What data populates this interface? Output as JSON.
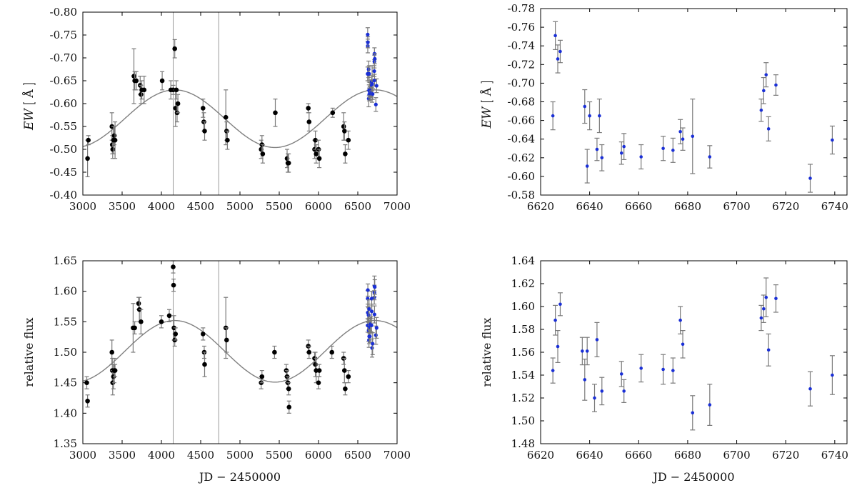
{
  "chart_data": [
    {
      "id": "ew-full",
      "type": "scatter",
      "xlabel": "",
      "ylabel": {
        "main": "EW",
        "unit": "Å"
      },
      "xlim": [
        3000,
        7000
      ],
      "ylim": [
        -0.4,
        -0.8
      ],
      "y_inverted": true,
      "xticks": [
        "3000",
        "3500",
        "4000",
        "4500",
        "5000",
        "5500",
        "6000",
        "6500",
        "7000"
      ],
      "yticks": [
        "-0.80",
        "-0.75",
        "-0.70",
        "-0.65",
        "-0.60",
        "-0.55",
        "-0.50",
        "-0.45",
        "-0.40"
      ],
      "vlines": [
        4150,
        4730
      ],
      "fit": {
        "kind": "sinusoid",
        "offset": -0.567,
        "amplitude": 0.063,
        "period": 2550,
        "peak_x": 4170
      },
      "series": [
        {
          "color": "#000000",
          "points": [
            {
              "x": 3060,
              "y": -0.48,
              "e": 0.04
            },
            {
              "x": 3070,
              "y": -0.52,
              "e": 0.01
            },
            {
              "x": 3370,
              "y": -0.55,
              "e": 0.03
            },
            {
              "x": 3375,
              "y": -0.51,
              "e": 0.02
            },
            {
              "x": 3380,
              "y": -0.5,
              "e": 0.02
            },
            {
              "x": 3390,
              "y": -0.52,
              "e": 0.03
            },
            {
              "x": 3400,
              "y": -0.53,
              "e": 0.02
            },
            {
              "x": 3410,
              "y": -0.52,
              "e": 0.04
            },
            {
              "x": 3650,
              "y": -0.66,
              "e": 0.06
            },
            {
              "x": 3660,
              "y": -0.65,
              "e": 0.02
            },
            {
              "x": 3680,
              "y": -0.65,
              "e": 0.02
            },
            {
              "x": 3730,
              "y": -0.64,
              "e": 0.02
            },
            {
              "x": 3740,
              "y": -0.62,
              "e": 0.02
            },
            {
              "x": 3750,
              "y": -0.63,
              "e": 0.02
            },
            {
              "x": 3780,
              "y": -0.63,
              "e": 0.03
            },
            {
              "x": 4010,
              "y": -0.65,
              "e": 0.02
            },
            {
              "x": 4120,
              "y": -0.63,
              "e": 0.02
            },
            {
              "x": 4150,
              "y": -0.63,
              "e": 0.01
            },
            {
              "x": 4170,
              "y": -0.72,
              "e": 0.02
            },
            {
              "x": 4180,
              "y": -0.59,
              "e": 0.04
            },
            {
              "x": 4190,
              "y": -0.63,
              "e": 0.02
            },
            {
              "x": 4200,
              "y": -0.58,
              "e": 0.02
            },
            {
              "x": 4210,
              "y": -0.6,
              "e": 0.02
            },
            {
              "x": 4530,
              "y": -0.59,
              "e": 0.02
            },
            {
              "x": 4540,
              "y": -0.56,
              "e": 0.02
            },
            {
              "x": 4550,
              "y": -0.54,
              "e": 0.02
            },
            {
              "x": 4820,
              "y": -0.57,
              "e": 0.06
            },
            {
              "x": 4830,
              "y": -0.54,
              "e": 0.02
            },
            {
              "x": 4840,
              "y": -0.52,
              "e": 0.02
            },
            {
              "x": 5270,
              "y": -0.5,
              "e": 0.02
            },
            {
              "x": 5280,
              "y": -0.51,
              "e": 0.02
            },
            {
              "x": 5290,
              "y": -0.49,
              "e": 0.02
            },
            {
              "x": 5450,
              "y": -0.58,
              "e": 0.03
            },
            {
              "x": 5600,
              "y": -0.48,
              "e": 0.02
            },
            {
              "x": 5610,
              "y": -0.47,
              "e": 0.02
            },
            {
              "x": 5620,
              "y": -0.47,
              "e": 0.02
            },
            {
              "x": 5870,
              "y": -0.59,
              "e": 0.01
            },
            {
              "x": 5880,
              "y": -0.56,
              "e": 0.02
            },
            {
              "x": 5950,
              "y": -0.5,
              "e": 0.02
            },
            {
              "x": 5960,
              "y": -0.52,
              "e": 0.02
            },
            {
              "x": 5970,
              "y": -0.49,
              "e": 0.02
            },
            {
              "x": 6000,
              "y": -0.5,
              "e": 0.02
            },
            {
              "x": 6010,
              "y": -0.48,
              "e": 0.02
            },
            {
              "x": 6180,
              "y": -0.58,
              "e": 0.01
            },
            {
              "x": 6320,
              "y": -0.55,
              "e": 0.03
            },
            {
              "x": 6330,
              "y": -0.54,
              "e": 0.02
            },
            {
              "x": 6340,
              "y": -0.49,
              "e": 0.02
            },
            {
              "x": 6380,
              "y": -0.52,
              "e": 0.02
            }
          ]
        },
        {
          "color": "#1a2fd6",
          "points": [
            {
              "x": 6625,
              "y": -0.665,
              "e": 0.015
            },
            {
              "x": 6626,
              "y": -0.751,
              "e": 0.015
            },
            {
              "x": 6627,
              "y": -0.726,
              "e": 0.015
            },
            {
              "x": 6628,
              "y": -0.734,
              "e": 0.012
            },
            {
              "x": 6638,
              "y": -0.675,
              "e": 0.018
            },
            {
              "x": 6639,
              "y": -0.611,
              "e": 0.018
            },
            {
              "x": 6640,
              "y": -0.665,
              "e": 0.015
            },
            {
              "x": 6643,
              "y": -0.629,
              "e": 0.012
            },
            {
              "x": 6644,
              "y": -0.665,
              "e": 0.018
            },
            {
              "x": 6645,
              "y": -0.62,
              "e": 0.014
            },
            {
              "x": 6653,
              "y": -0.625,
              "e": 0.012
            },
            {
              "x": 6654,
              "y": -0.632,
              "e": 0.014
            },
            {
              "x": 6661,
              "y": -0.621,
              "e": 0.013
            },
            {
              "x": 6670,
              "y": -0.63,
              "e": 0.013
            },
            {
              "x": 6674,
              "y": -0.628,
              "e": 0.013
            },
            {
              "x": 6677,
              "y": -0.648,
              "e": 0.013
            },
            {
              "x": 6678,
              "y": -0.64,
              "e": 0.012
            },
            {
              "x": 6682,
              "y": -0.643,
              "e": 0.04
            },
            {
              "x": 6689,
              "y": -0.621,
              "e": 0.012
            },
            {
              "x": 6710,
              "y": -0.671,
              "e": 0.012
            },
            {
              "x": 6711,
              "y": -0.692,
              "e": 0.014
            },
            {
              "x": 6712,
              "y": -0.709,
              "e": 0.013
            },
            {
              "x": 6713,
              "y": -0.651,
              "e": 0.013
            },
            {
              "x": 6716,
              "y": -0.698,
              "e": 0.011
            },
            {
              "x": 6730,
              "y": -0.598,
              "e": 0.015
            },
            {
              "x": 6739,
              "y": -0.639,
              "e": 0.015
            }
          ]
        }
      ]
    },
    {
      "id": "ew-zoom",
      "type": "scatter",
      "xlabel": "",
      "ylabel": {
        "main": "EW",
        "unit": "Å"
      },
      "xlim": [
        6620,
        6745
      ],
      "ylim": [
        -0.58,
        -0.78
      ],
      "y_inverted": true,
      "xticks": [
        "6620",
        "6640",
        "6660",
        "6680",
        "6700",
        "6720",
        "6740"
      ],
      "xtick_values": [
        6620,
        6640,
        6660,
        6680,
        6700,
        6720,
        6740
      ],
      "yticks": [
        "-0.78",
        "-0.76",
        "-0.74",
        "-0.72",
        "-0.70",
        "-0.68",
        "-0.66",
        "-0.64",
        "-0.62",
        "-0.60",
        "-0.58"
      ],
      "series_ref": "ew-full.1"
    },
    {
      "id": "flux-full",
      "type": "scatter",
      "xlabel": "JD − 2450000",
      "ylabel": {
        "main": "relative flux",
        "unit": ""
      },
      "xlim": [
        3000,
        7000
      ],
      "ylim": [
        1.35,
        1.65
      ],
      "y_inverted": false,
      "xticks": [
        "3000",
        "3500",
        "4000",
        "4500",
        "5000",
        "5500",
        "6000",
        "6500",
        "7000"
      ],
      "yticks": [
        "1.65",
        "1.60",
        "1.55",
        "1.50",
        "1.45",
        "1.40",
        "1.35"
      ],
      "vlines": [
        4150,
        4730
      ],
      "fit": {
        "kind": "sinusoid",
        "offset": 1.5015,
        "amplitude": 0.0505,
        "period": 2550,
        "peak_x": 4170
      },
      "series": [
        {
          "color": "#000000",
          "points": [
            {
              "x": 3050,
              "y": 1.45,
              "e": 0.01
            },
            {
              "x": 3060,
              "y": 1.42,
              "e": 0.01
            },
            {
              "x": 3370,
              "y": 1.5,
              "e": 0.02
            },
            {
              "x": 3375,
              "y": 1.47,
              "e": 0.02
            },
            {
              "x": 3380,
              "y": 1.45,
              "e": 0.02
            },
            {
              "x": 3390,
              "y": 1.46,
              "e": 0.02
            },
            {
              "x": 3400,
              "y": 1.47,
              "e": 0.02
            },
            {
              "x": 3410,
              "y": 1.47,
              "e": 0.01
            },
            {
              "x": 3640,
              "y": 1.54,
              "e": 0.04
            },
            {
              "x": 3660,
              "y": 1.54,
              "e": 0.01
            },
            {
              "x": 3710,
              "y": 1.58,
              "e": 0.01
            },
            {
              "x": 3720,
              "y": 1.57,
              "e": 0.02
            },
            {
              "x": 3740,
              "y": 1.55,
              "e": 0.02
            },
            {
              "x": 4000,
              "y": 1.55,
              "e": 0.01
            },
            {
              "x": 4100,
              "y": 1.56,
              "e": 0.01
            },
            {
              "x": 4150,
              "y": 1.64,
              "e": 0.01
            },
            {
              "x": 4155,
              "y": 1.61,
              "e": 0.01
            },
            {
              "x": 4160,
              "y": 1.54,
              "e": 0.02
            },
            {
              "x": 4170,
              "y": 1.52,
              "e": 0.01
            },
            {
              "x": 4180,
              "y": 1.53,
              "e": 0.01
            },
            {
              "x": 4530,
              "y": 1.53,
              "e": 0.01
            },
            {
              "x": 4545,
              "y": 1.5,
              "e": 0.01
            },
            {
              "x": 4550,
              "y": 1.48,
              "e": 0.02
            },
            {
              "x": 4820,
              "y": 1.54,
              "e": 0.05
            },
            {
              "x": 4830,
              "y": 1.52,
              "e": 0.02
            },
            {
              "x": 5270,
              "y": 1.45,
              "e": 0.01
            },
            {
              "x": 5280,
              "y": 1.46,
              "e": 0.01
            },
            {
              "x": 5440,
              "y": 1.5,
              "e": 0.01
            },
            {
              "x": 5590,
              "y": 1.47,
              "e": 0.01
            },
            {
              "x": 5600,
              "y": 1.46,
              "e": 0.01
            },
            {
              "x": 5610,
              "y": 1.45,
              "e": 0.01
            },
            {
              "x": 5620,
              "y": 1.44,
              "e": 0.01
            },
            {
              "x": 5625,
              "y": 1.41,
              "e": 0.01
            },
            {
              "x": 5870,
              "y": 1.51,
              "e": 0.01
            },
            {
              "x": 5880,
              "y": 1.5,
              "e": 0.01
            },
            {
              "x": 5950,
              "y": 1.49,
              "e": 0.01
            },
            {
              "x": 5960,
              "y": 1.48,
              "e": 0.02
            },
            {
              "x": 5970,
              "y": 1.47,
              "e": 0.02
            },
            {
              "x": 6000,
              "y": 1.45,
              "e": 0.01
            },
            {
              "x": 6010,
              "y": 1.47,
              "e": 0.01
            },
            {
              "x": 6170,
              "y": 1.5,
              "e": 0.01
            },
            {
              "x": 6320,
              "y": 1.49,
              "e": 0.01
            },
            {
              "x": 6330,
              "y": 1.47,
              "e": 0.02
            },
            {
              "x": 6340,
              "y": 1.44,
              "e": 0.01
            },
            {
              "x": 6380,
              "y": 1.46,
              "e": 0.01
            }
          ]
        },
        {
          "color": "#1a2fd6",
          "points": [
            {
              "x": 6625,
              "y": 1.544,
              "e": 0.011
            },
            {
              "x": 6626,
              "y": 1.588,
              "e": 0.013
            },
            {
              "x": 6627,
              "y": 1.565,
              "e": 0.014
            },
            {
              "x": 6628,
              "y": 1.602,
              "e": 0.01
            },
            {
              "x": 6637,
              "y": 1.561,
              "e": 0.012
            },
            {
              "x": 6638,
              "y": 1.536,
              "e": 0.018
            },
            {
              "x": 6639,
              "y": 1.561,
              "e": 0.012
            },
            {
              "x": 6642,
              "y": 1.52,
              "e": 0.012
            },
            {
              "x": 6643,
              "y": 1.571,
              "e": 0.015
            },
            {
              "x": 6645,
              "y": 1.526,
              "e": 0.012
            },
            {
              "x": 6653,
              "y": 1.541,
              "e": 0.011
            },
            {
              "x": 6654,
              "y": 1.526,
              "e": 0.01
            },
            {
              "x": 6661,
              "y": 1.546,
              "e": 0.012
            },
            {
              "x": 6670,
              "y": 1.545,
              "e": 0.013
            },
            {
              "x": 6674,
              "y": 1.544,
              "e": 0.011
            },
            {
              "x": 6677,
              "y": 1.588,
              "e": 0.012
            },
            {
              "x": 6678,
              "y": 1.567,
              "e": 0.012
            },
            {
              "x": 6682,
              "y": 1.507,
              "e": 0.015
            },
            {
              "x": 6689,
              "y": 1.514,
              "e": 0.018
            },
            {
              "x": 6710,
              "y": 1.59,
              "e": 0.011
            },
            {
              "x": 6711,
              "y": 1.598,
              "e": 0.012
            },
            {
              "x": 6712,
              "y": 1.608,
              "e": 0.017
            },
            {
              "x": 6713,
              "y": 1.562,
              "e": 0.014
            },
            {
              "x": 6716,
              "y": 1.607,
              "e": 0.012
            },
            {
              "x": 6730,
              "y": 1.528,
              "e": 0.015
            },
            {
              "x": 6739,
              "y": 1.54,
              "e": 0.017
            }
          ]
        }
      ]
    },
    {
      "id": "flux-zoom",
      "type": "scatter",
      "xlabel": "JD − 2450000",
      "ylabel": {
        "main": "relative flux",
        "unit": ""
      },
      "xlim": [
        6620,
        6745
      ],
      "ylim": [
        1.48,
        1.64
      ],
      "y_inverted": false,
      "xticks": [
        "6620",
        "6640",
        "6660",
        "6680",
        "6700",
        "6720",
        "6740"
      ],
      "xtick_values": [
        6620,
        6640,
        6660,
        6680,
        6700,
        6720,
        6740
      ],
      "yticks": [
        "1.64",
        "1.62",
        "1.60",
        "1.58",
        "1.56",
        "1.54",
        "1.52",
        "1.50",
        "1.48"
      ],
      "series_ref": "flux-full.1"
    }
  ]
}
